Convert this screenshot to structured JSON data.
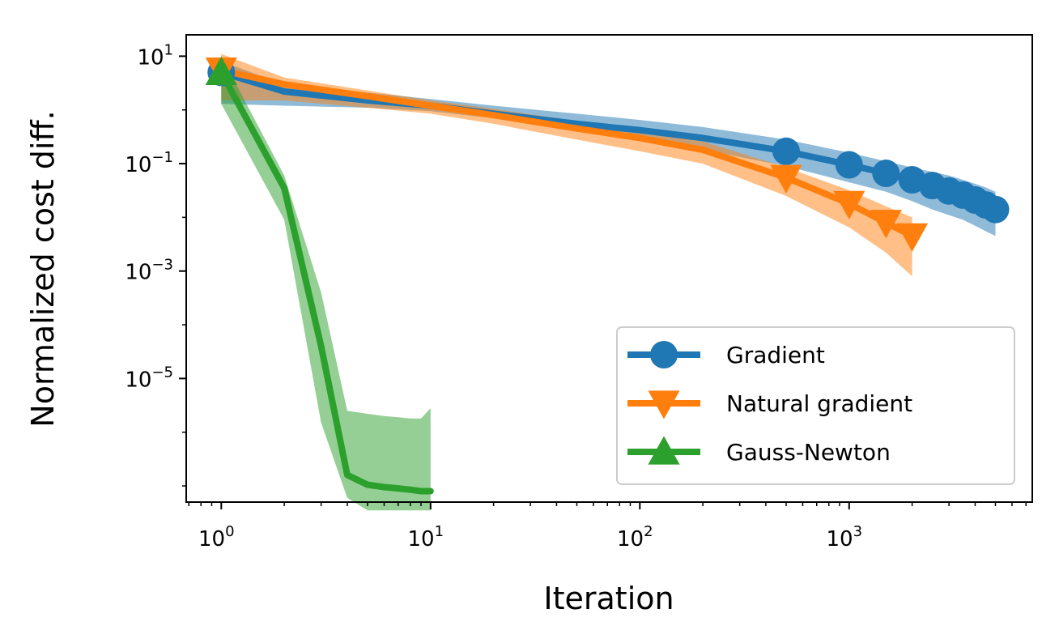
{
  "chart_data": {
    "type": "line",
    "title": "",
    "xlabel": "Iteration",
    "ylabel": "Normalized cost diff.",
    "xscale": "log",
    "yscale": "log",
    "xlim": [
      0.68,
      7500
    ],
    "ylim": [
      5e-08,
      25
    ],
    "x_ticks": [
      {
        "value": 1,
        "base": "10",
        "exp": "0"
      },
      {
        "value": 10,
        "base": "10",
        "exp": "1"
      },
      {
        "value": 100,
        "base": "10",
        "exp": "2"
      },
      {
        "value": 1000,
        "base": "10",
        "exp": "3"
      }
    ],
    "y_ticks": [
      {
        "value": 10,
        "base": "10",
        "exp": "1"
      },
      {
        "value": 0.1,
        "base": "10",
        "exp": "−1"
      },
      {
        "value": 0.001,
        "base": "10",
        "exp": "−3"
      },
      {
        "value": 1e-05,
        "base": "10",
        "exp": "−5"
      }
    ],
    "grid": false,
    "legend_position": "lower-right",
    "series": [
      {
        "name": "Gradient",
        "color": "#1f77b4",
        "marker": "circle",
        "x": [
          1,
          2,
          5,
          10,
          20,
          50,
          100,
          200,
          500,
          1000,
          1500,
          2000,
          2500,
          3000,
          3500,
          4000,
          4500,
          5000
        ],
        "y": [
          5.0,
          2.2,
          1.5,
          1.2,
          0.85,
          0.55,
          0.42,
          0.3,
          0.17,
          0.095,
          0.066,
          0.05,
          0.039,
          0.031,
          0.026,
          0.021,
          0.017,
          0.014
        ],
        "band_low": [
          1.3,
          1.2,
          1.1,
          0.95,
          0.7,
          0.4,
          0.28,
          0.18,
          0.09,
          0.045,
          0.03,
          0.02,
          0.014,
          0.011,
          0.009,
          0.007,
          0.0055,
          0.0045
        ],
        "band_high": [
          8.0,
          3.0,
          2.1,
          1.6,
          1.2,
          0.85,
          0.65,
          0.48,
          0.28,
          0.16,
          0.11,
          0.085,
          0.07,
          0.06,
          0.05,
          0.042,
          0.036,
          0.03
        ],
        "marker_x": [
          1,
          500,
          1000,
          1500,
          2000,
          2500,
          3000,
          3500,
          4000,
          4500,
          5000
        ]
      },
      {
        "name": "Natural gradient",
        "color": "#ff7f0e",
        "marker": "triangle-down",
        "x": [
          1,
          2,
          5,
          10,
          20,
          50,
          100,
          200,
          500,
          1000,
          1500,
          2000
        ],
        "y": [
          5.5,
          3.0,
          1.8,
          1.2,
          0.8,
          0.45,
          0.3,
          0.18,
          0.055,
          0.018,
          0.008,
          0.0045
        ],
        "band_low": [
          1.5,
          1.5,
          1.1,
          0.85,
          0.55,
          0.28,
          0.17,
          0.1,
          0.025,
          0.0065,
          0.0022,
          0.0008
        ],
        "band_high": [
          11.0,
          4.0,
          2.3,
          1.5,
          1.05,
          0.62,
          0.42,
          0.26,
          0.085,
          0.032,
          0.016,
          0.01
        ],
        "marker_x": [
          1,
          500,
          1000,
          1500,
          2000
        ]
      },
      {
        "name": "Gauss-Newton",
        "color": "#2ca02c",
        "marker": "triangle-up",
        "x": [
          1,
          2,
          3,
          4,
          5,
          6,
          7,
          8,
          9,
          10
        ],
        "y": [
          5.0,
          0.035,
          4e-05,
          1.6e-07,
          1.05e-07,
          9.5e-08,
          9e-08,
          8.5e-08,
          8e-08,
          8e-08
        ],
        "band_low": [
          1.3,
          0.009,
          1.5e-06,
          6e-08,
          3.5e-08,
          3.5e-08,
          3.5e-08,
          3.5e-08,
          3.5e-08,
          3.5e-08
        ],
        "band_high": [
          10.0,
          0.06,
          0.0004,
          2.5e-06,
          2.2e-06,
          2e-06,
          1.9e-06,
          1.8e-06,
          1.8e-06,
          2.8e-06
        ],
        "marker_x": [
          1
        ]
      }
    ]
  }
}
